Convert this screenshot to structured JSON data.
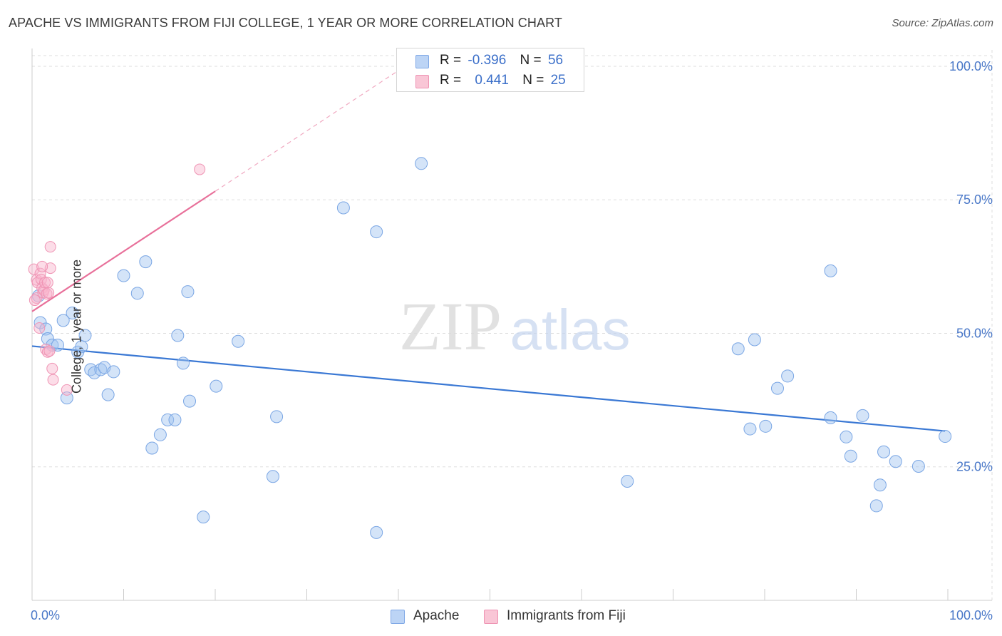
{
  "title": "APACHE VS IMMIGRANTS FROM FIJI COLLEGE, 1 YEAR OR MORE CORRELATION CHART",
  "source": "Source: ZipAtlas.com",
  "watermark": {
    "zip": "ZIP",
    "atlas": "atlas"
  },
  "colors": {
    "apache": "#3a78d4",
    "apache_fill": "rgba(160,196,240,0.45)",
    "fiji": "#e8709a",
    "fiji_fill": "rgba(248,180,205,0.45)",
    "tick": "#4a78c8",
    "grid": "#dddddd"
  },
  "legend_top": {
    "rows": [
      {
        "r_label": "R =",
        "r_value": "-0.396",
        "n_label": "N =",
        "n_value": "56"
      },
      {
        "r_label": "R =",
        "r_value": "0.441",
        "n_label": "N =",
        "n_value": "25"
      }
    ]
  },
  "legend_bottom": {
    "apache": "Apache",
    "fiji": "Immigrants from Fiji"
  },
  "chart_data": {
    "type": "scatter",
    "title": "APACHE VS IMMIGRANTS FROM FIJI COLLEGE, 1 YEAR OR MORE CORRELATION CHART",
    "xlabel": "",
    "ylabel": "College, 1 year or more",
    "xlim": [
      0,
      100
    ],
    "ylim": [
      0,
      102
    ],
    "x_tick_labels": [
      "0.0%",
      "100.0%"
    ],
    "y_ticks": [
      25,
      50,
      75,
      100
    ],
    "y_tick_labels": [
      "25.0%",
      "50.0%",
      "75.0%",
      "100.0%"
    ],
    "grid": true,
    "legend_placement": "bottom",
    "series": [
      {
        "name": "Apache",
        "points": [
          [
            0.9,
            52.0
          ],
          [
            1.5,
            50.8
          ],
          [
            1.7,
            49.0
          ],
          [
            2.2,
            47.8
          ],
          [
            2.8,
            47.8
          ],
          [
            3.4,
            52.4
          ],
          [
            4.4,
            53.8
          ],
          [
            3.8,
            37.9
          ],
          [
            5.0,
            46.5
          ],
          [
            5.4,
            47.5
          ],
          [
            5.8,
            49.6
          ],
          [
            6.4,
            43.2
          ],
          [
            6.8,
            42.6
          ],
          [
            7.5,
            43.2
          ],
          [
            7.9,
            43.6
          ],
          [
            8.9,
            42.8
          ],
          [
            8.3,
            38.5
          ],
          [
            10.0,
            60.8
          ],
          [
            11.5,
            57.5
          ],
          [
            12.4,
            63.4
          ],
          [
            13.1,
            28.5
          ],
          [
            14.0,
            31.0
          ],
          [
            14.8,
            33.8
          ],
          [
            15.6,
            33.8
          ],
          [
            15.9,
            49.6
          ],
          [
            16.5,
            44.4
          ],
          [
            17.0,
            57.8
          ],
          [
            17.2,
            37.3
          ],
          [
            18.7,
            15.6
          ],
          [
            20.1,
            40.1
          ],
          [
            22.5,
            48.5
          ],
          [
            26.7,
            34.4
          ],
          [
            26.3,
            23.2
          ],
          [
            34.0,
            73.5
          ],
          [
            37.6,
            69.0
          ],
          [
            37.6,
            12.7
          ],
          [
            42.5,
            81.8
          ],
          [
            65.0,
            22.3
          ],
          [
            77.1,
            47.1
          ],
          [
            78.4,
            32.1
          ],
          [
            78.9,
            48.8
          ],
          [
            80.1,
            32.6
          ],
          [
            81.4,
            39.7
          ],
          [
            82.5,
            42.0
          ],
          [
            87.2,
            61.7
          ],
          [
            87.2,
            34.2
          ],
          [
            88.9,
            30.6
          ],
          [
            89.4,
            27.0
          ],
          [
            90.7,
            34.6
          ],
          [
            92.2,
            17.7
          ],
          [
            92.6,
            21.6
          ],
          [
            93.0,
            27.8
          ],
          [
            94.3,
            26.0
          ],
          [
            96.8,
            25.1
          ],
          [
            99.7,
            30.7
          ],
          [
            0.7,
            57.0
          ]
        ],
        "trend": {
          "x": [
            0,
            99.7
          ],
          "y": [
            47.6,
            31.7
          ]
        }
      },
      {
        "name": "Immigrants from Fiji",
        "points": [
          [
            0.2,
            62.0
          ],
          [
            0.5,
            60.0
          ],
          [
            0.5,
            56.6
          ],
          [
            0.6,
            59.5
          ],
          [
            0.8,
            51.0
          ],
          [
            0.9,
            61.2
          ],
          [
            1.0,
            60.1
          ],
          [
            1.1,
            58.5
          ],
          [
            1.2,
            57.6
          ],
          [
            1.3,
            58.1
          ],
          [
            1.4,
            59.5
          ],
          [
            1.5,
            47.0
          ],
          [
            1.6,
            57.4
          ],
          [
            1.7,
            59.5
          ],
          [
            1.7,
            46.5
          ],
          [
            1.8,
            57.6
          ],
          [
            1.9,
            46.7
          ],
          [
            2.0,
            62.2
          ],
          [
            2.0,
            66.2
          ],
          [
            2.2,
            43.4
          ],
          [
            2.3,
            41.3
          ],
          [
            3.8,
            39.4
          ],
          [
            18.3,
            80.7
          ],
          [
            0.3,
            56.2
          ],
          [
            1.1,
            62.5
          ]
        ],
        "trend": {
          "x": [
            0,
            20.0
          ],
          "y": [
            54.1,
            76.6
          ],
          "dashed_extension": {
            "x": [
              20.0,
              40.0
            ],
            "y": [
              76.6,
              99.2
            ]
          }
        }
      }
    ]
  }
}
